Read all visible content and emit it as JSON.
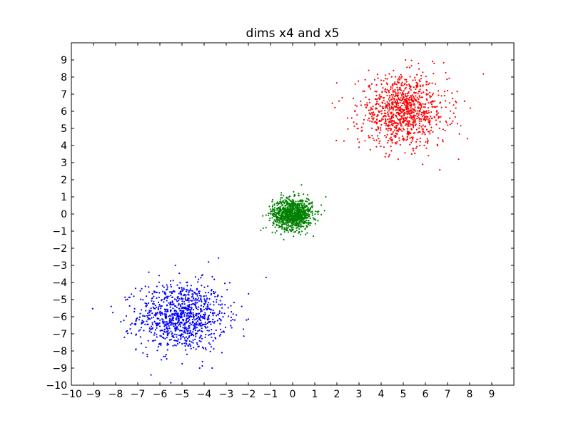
{
  "chart_data": {
    "type": "scatter",
    "title": "dims x4 and x5",
    "xlabel": "",
    "ylabel": "",
    "xlim": [
      -10,
      10
    ],
    "ylim": [
      -10,
      10
    ],
    "xticks": [
      -10,
      -9,
      -8,
      -7,
      -6,
      -5,
      -4,
      -3,
      -2,
      -1,
      0,
      1,
      2,
      3,
      4,
      5,
      6,
      7,
      8,
      9
    ],
    "yticks": [
      -10,
      -9,
      -8,
      -7,
      -6,
      -5,
      -4,
      -3,
      -2,
      -1,
      0,
      1,
      2,
      3,
      4,
      5,
      6,
      7,
      8,
      9
    ],
    "xtick_labels": [
      "−10",
      "−9",
      "−8",
      "−7",
      "−6",
      "−5",
      "−4",
      "−3",
      "−2",
      "−1",
      "0",
      "1",
      "2",
      "3",
      "4",
      "5",
      "6",
      "7",
      "8",
      "9"
    ],
    "ytick_labels": [
      "−10",
      "−9",
      "−8",
      "−7",
      "−6",
      "−5",
      "−4",
      "−3",
      "−2",
      "−1",
      "0",
      "1",
      "2",
      "3",
      "4",
      "5",
      "6",
      "7",
      "8",
      "9"
    ],
    "grid": false,
    "legend": false,
    "series": [
      {
        "color": "#0000ff",
        "center": [
          -5.0,
          -6.0
        ],
        "spread": [
          1.0,
          1.0
        ],
        "count": 1000,
        "points": [
          [
            -8.2,
            -5.4
          ],
          [
            -7.6,
            -7.2
          ],
          [
            -2.3,
            -5.4
          ],
          [
            -1.2,
            -3.7
          ],
          [
            -3.8,
            -2.8
          ],
          [
            -6.4,
            -9.4
          ],
          [
            -4.2,
            -9.0
          ],
          [
            -5.3,
            -3.0
          ],
          [
            -6.5,
            -3.4
          ]
        ]
      },
      {
        "color": "#008000",
        "center": [
          0.0,
          0.0
        ],
        "spread": [
          0.45,
          0.45
        ],
        "count": 1000,
        "points": [
          [
            1.5,
            1.0
          ],
          [
            0.4,
            1.7
          ],
          [
            -1.2,
            -0.8
          ],
          [
            -0.4,
            -1.5
          ]
        ]
      },
      {
        "color": "#ff0000",
        "center": [
          5.0,
          6.0
        ],
        "spread": [
          1.0,
          1.0
        ],
        "count": 1000,
        "points": [
          [
            7.9,
            4.4
          ],
          [
            7.5,
            3.2
          ],
          [
            5.1,
            9.0
          ],
          [
            6.4,
            8.8
          ],
          [
            2.1,
            6.6
          ],
          [
            3.0,
            3.9
          ]
        ]
      }
    ]
  }
}
